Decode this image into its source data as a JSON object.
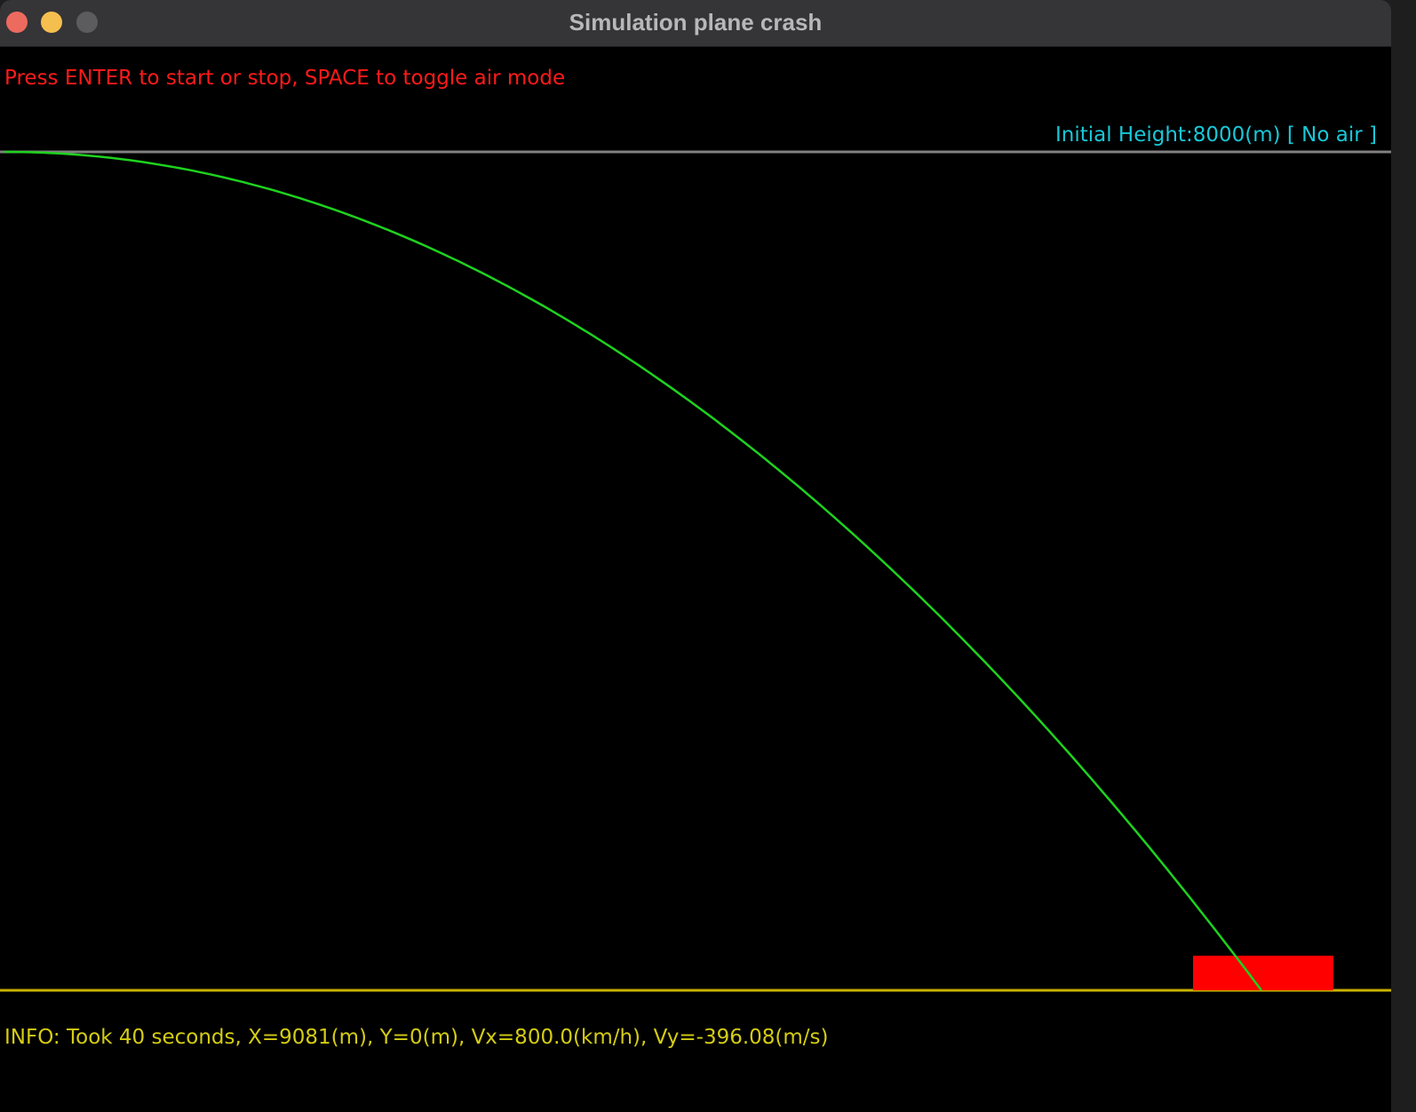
{
  "window": {
    "title": "Simulation plane crash"
  },
  "instructions": "Press ENTER to start or stop, SPACE to toggle air mode",
  "status": {
    "height_label": "Initial Height:8000(m) [ No air ]"
  },
  "info": "INFO: Took 40 seconds, X=9081(m), Y=0(m), Vx=800.0(km/h), Vy=-396.08(m/s)",
  "simulation": {
    "initial_height_m": 8000,
    "final_x_m": 9081,
    "final_y_m": 0
  },
  "colors": {
    "background": "#000000",
    "trajectory": "#1ed21e",
    "top_line": "#808080",
    "ground_line": "#c8b400",
    "plane_marker": "#ff0000",
    "instructions_text": "#ff1a1a",
    "height_text": "#18c8d8",
    "info_text": "#d4cc14"
  }
}
